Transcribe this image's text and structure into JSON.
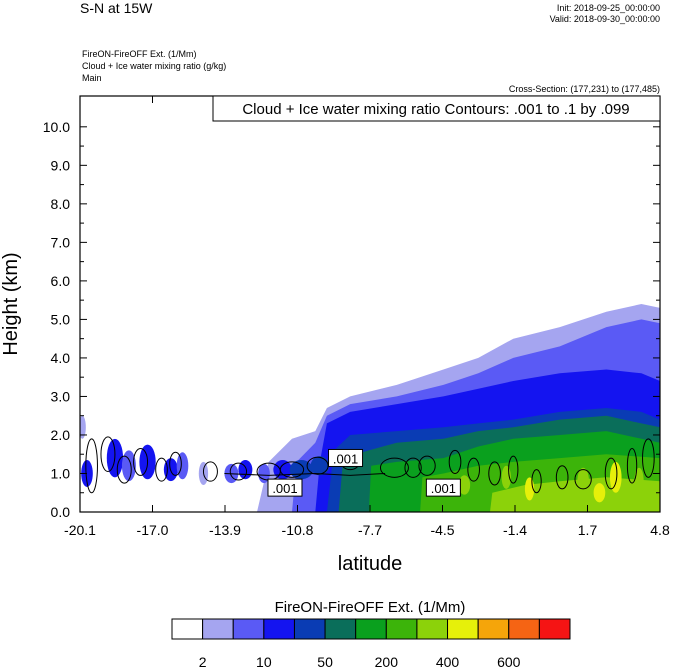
{
  "header": {
    "main_title": "S-N at 15W",
    "init": "Init: 2018-09-25_00:00:00",
    "valid": "Valid: 2018-09-30_00:00:00",
    "field1": "FireON-FireOFF Ext.   (1/Mm)",
    "field2": "Cloud + Ice water mixing ratio   (g/kg)",
    "domain_name": "Main",
    "cross_section": "Cross-Section: (177,231) to (177,485)"
  },
  "colors": {
    "levels": [
      "#ffffff",
      "#a5a5f0",
      "#5a5af5",
      "#1414f0",
      "#0a3cb4",
      "#0a6e5a",
      "#0aa01e",
      "#3cb40a",
      "#8cd20a",
      "#e6f00a",
      "#f5a50a",
      "#f56414",
      "#f51414"
    ]
  },
  "chart_data": {
    "type": "heatmap",
    "title": "Cloud + Ice water mixing ratio Contours: .001 to .1 by .099",
    "xlabel": "latitude",
    "ylabel": "Height (km)",
    "x_ticks": [
      "-20.1",
      "-17.0",
      "-13.9",
      "-10.8",
      "-7.7",
      "-4.5",
      "-1.4",
      "1.7",
      "4.8"
    ],
    "y_ticks": [
      "0.0",
      "1.0",
      "2.0",
      "3.0",
      "4.0",
      "5.0",
      "6.0",
      "7.0",
      "8.0",
      "9.0",
      "10.0"
    ],
    "xlim": [
      -20.1,
      4.8
    ],
    "ylim": [
      0,
      10.8
    ],
    "contour_labels": [
      ".001",
      ".001",
      ".001"
    ],
    "colorbar": {
      "title": "FireON-FireOFF Ext.  (1/Mm)",
      "tick_labels": [
        "2",
        "10",
        "50",
        "200",
        "400",
        "600"
      ]
    }
  }
}
